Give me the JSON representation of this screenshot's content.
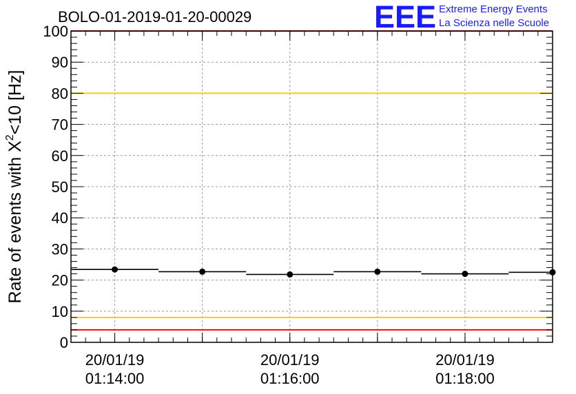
{
  "chart_data": {
    "type": "scatter",
    "title": "BOLO-01-2019-01-20-00029",
    "ylabel": {
      "prefix": "Rate of events with X",
      "superscript": "2",
      "suffix": "<10 [Hz]"
    },
    "xlabel": "",
    "ylim": [
      0,
      100
    ],
    "y_ticks": [
      "0",
      "10",
      "20",
      "30",
      "40",
      "50",
      "60",
      "70",
      "80",
      "90",
      "100"
    ],
    "x_range_minutes": [
      0,
      5.5
    ],
    "x_tick_labels": [
      {
        "at": 0.5,
        "line1": "20/01/19",
        "line2": "01:14:00"
      },
      {
        "at": 2.5,
        "line1": "20/01/19",
        "line2": "01:16:00"
      },
      {
        "at": 4.5,
        "line1": "20/01/19",
        "line2": "01:18:00"
      }
    ],
    "grid": true,
    "points": [
      {
        "x": 0.5,
        "y": 23.4,
        "x_lo": 0.0,
        "x_hi": 1.0
      },
      {
        "x": 1.5,
        "y": 22.7,
        "x_lo": 1.0,
        "x_hi": 2.0
      },
      {
        "x": 2.5,
        "y": 21.8,
        "x_lo": 2.0,
        "x_hi": 3.0
      },
      {
        "x": 3.5,
        "y": 22.7,
        "x_lo": 3.0,
        "x_hi": 4.0
      },
      {
        "x": 4.5,
        "y": 22.0,
        "x_lo": 4.0,
        "x_hi": 5.0
      },
      {
        "x": 5.5,
        "y": 22.5,
        "x_lo": 5.0,
        "x_hi": 5.5
      }
    ],
    "reference_lines": [
      {
        "y": 100,
        "color": "#ff0000"
      },
      {
        "y": 80,
        "color": "#ffcc00"
      },
      {
        "y": 8,
        "color": "#ffcc00"
      },
      {
        "y": 4,
        "color": "#ff0000"
      }
    ],
    "point_color": "#000000"
  },
  "logo": {
    "mark": "EEE",
    "line1": "Extreme Energy Events",
    "line2": "La Scienza nelle Scuole",
    "color": "#1a1aff"
  }
}
